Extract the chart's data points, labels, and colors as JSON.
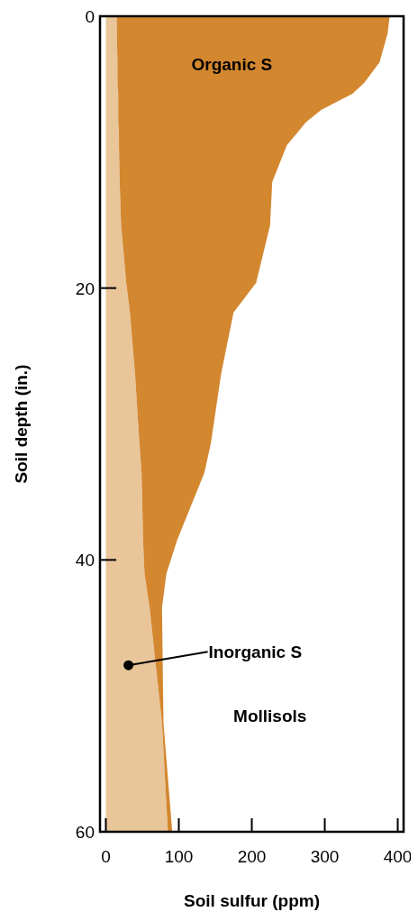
{
  "chart_data": {
    "type": "area",
    "orientation": "horizontal",
    "stacked": true,
    "xlabel": "Soil sulfur (ppm)",
    "ylabel": "Soil depth (in.)",
    "x": [
      0,
      1.3,
      3.4,
      4.9,
      5.7,
      6.9,
      7.8,
      8.4,
      9.5,
      12.2,
      15.4,
      19.6,
      21.8,
      26.3,
      31.4,
      33.6,
      38.5,
      41,
      43.5,
      52,
      60
    ],
    "series": [
      {
        "name": "Inorganic S",
        "color": "#e9c59a",
        "values": [
          15,
          15,
          16,
          16,
          17,
          17,
          17,
          18,
          18,
          19,
          21,
          28,
          33,
          40,
          46,
          49,
          51,
          53,
          60,
          77,
          85
        ]
      },
      {
        "name": "Organic S",
        "color": "#d3872f",
        "values": [
          374,
          371,
          359,
          338,
          321,
          278,
          257,
          247,
          230,
          209,
          204,
          178,
          142,
          118,
          98,
          86,
          47,
          30,
          17,
          2,
          6
        ]
      }
    ],
    "xlim": [
      -8,
      408
    ],
    "xticks": [
      0,
      100,
      200,
      300,
      400
    ],
    "ylim": [
      60,
      0
    ],
    "yticks": [
      0,
      20,
      40,
      60
    ],
    "annotations": [
      "Mollisols"
    ]
  }
}
